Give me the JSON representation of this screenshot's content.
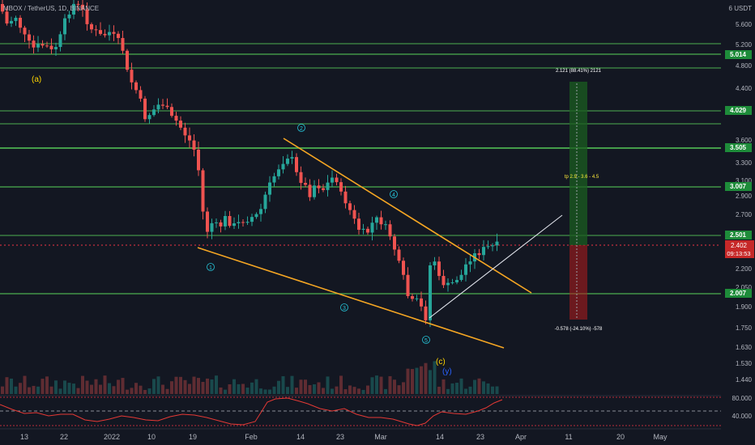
{
  "header": {
    "symbol_title": "MBOX / TetherUS, 1D, BINANCE",
    "currency_unit": "USDT"
  },
  "colors": {
    "background": "#131722",
    "up_candle": "#26a69a",
    "down_candle": "#ef5350",
    "level_line": "#4caf50",
    "trendline": "#f5a623",
    "current_price": "#f23645",
    "wave_label": "#26c6da",
    "abc_label": "#ffd600",
    "y_label": "#2962ff",
    "rsi_line": "#e53935"
  },
  "price_axis": {
    "ticks": [
      "6",
      "5.600",
      "5.200",
      "4.800",
      "4.400",
      "3.600",
      "3.300",
      "3.100",
      "2.900",
      "2.700",
      "2.200",
      "2.050",
      "1.900",
      "1.750",
      "1.630",
      "1.530",
      "1.440"
    ],
    "level_tags": [
      "5.014",
      "4.029",
      "3.505",
      "3.007",
      "2.501",
      "2.007"
    ],
    "current_price": "2.402",
    "countdown": "09:13:53"
  },
  "rsi_axis": {
    "ticks": [
      "80.000",
      "40.000"
    ]
  },
  "time_axis": {
    "labels": [
      "13",
      "22",
      "2022",
      "10",
      "19",
      "Feb",
      "14",
      "23",
      "Mar",
      "14",
      "23",
      "Apr",
      "11",
      "20",
      "May"
    ]
  },
  "annotations": {
    "wave_a": "(a)",
    "wave_c": "(c)",
    "wave_y": "(y)",
    "waves": [
      "1",
      "2",
      "3",
      "4",
      "5"
    ],
    "target_label": "2.121 (88.41%) 2121",
    "stop_label": "-0.578 (-24.10%) -578",
    "tp_label": "tp 2.9 - 3.6 - 4.5"
  }
}
